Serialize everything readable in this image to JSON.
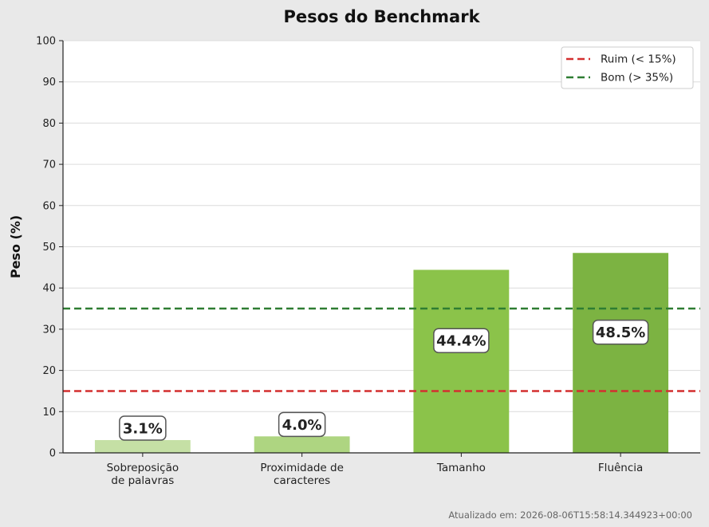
{
  "chart_data": {
    "type": "bar",
    "title": "Pesos do Benchmark",
    "ylabel": "Peso (%)",
    "xlabel": "",
    "ylim": [
      0,
      100
    ],
    "yticks": [
      0,
      10,
      20,
      30,
      40,
      50,
      60,
      70,
      80,
      90,
      100
    ],
    "grid": "horizontal",
    "categories": [
      [
        "Sobreposição",
        "de palavras"
      ],
      [
        "Proximidade de",
        "caracteres"
      ],
      [
        "Tamanho"
      ],
      [
        "Fluência"
      ]
    ],
    "values": [
      3.1,
      4.0,
      44.4,
      48.5
    ],
    "value_labels": [
      "3.1%",
      "4.0%",
      "44.4%",
      "48.5%"
    ],
    "bar_colors": [
      "#c5e0a5",
      "#aed581",
      "#8bc34a",
      "#7cb342"
    ],
    "reference_lines": [
      {
        "label": "Ruim (< 15%)",
        "value": 15,
        "color": "#d32f2f",
        "style": "dashed"
      },
      {
        "label": "Bom (> 35%)",
        "value": 35,
        "color": "#2e7d32",
        "style": "dashed"
      }
    ],
    "legend_placement": "top-right"
  },
  "footer": {
    "updated_text": "Atualizado em: 2026-08-06T15:58:14.344923+00:00"
  }
}
